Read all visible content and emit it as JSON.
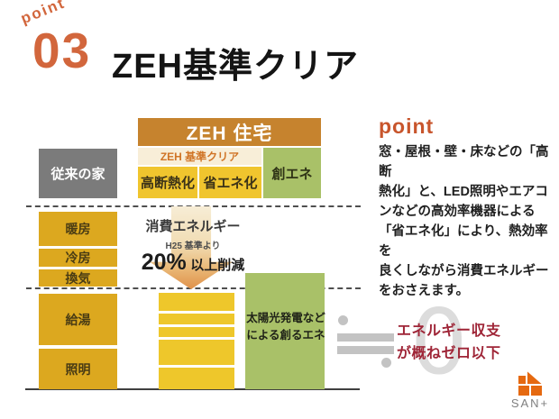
{
  "colors": {
    "accent_orange": "#d2663c",
    "header_band_orange": "#c6832e",
    "cream_band": "#f8eed8",
    "cream_band_text": "#d07426",
    "yellow_box": "#f0c52e",
    "gold_column": "#dca81f",
    "stack_yellow": "#eec72b",
    "green_box": "#a9c168",
    "gray_box": "#7b7b7b",
    "balance_red": "#9f2537",
    "logo_orange": "#e56910"
  },
  "header": {
    "point_label": "point",
    "point_number": "03",
    "title": "ZEH基準クリア"
  },
  "diagram": {
    "conventional_label": "従来の家",
    "zeh_header": "ZEH 住宅",
    "zeh_band": "ZEH 基準クリア",
    "box_insulation": "高断熱化",
    "box_saving": "省エネ化",
    "box_creation": "創エネ",
    "left_categories": [
      "暖房",
      "冷房",
      "換気",
      "給湯",
      "照明"
    ],
    "arrow_line1": "消費エネルギー",
    "arrow_line2": "H25 基準より",
    "arrow_percent": "20%",
    "arrow_suffix": "以上削減",
    "solar_line1": "太陽光発電など",
    "solar_line2": "による創るエネ",
    "zero_glyph": "0",
    "balance_line1": "エネルギー収支",
    "balance_line2": "が概ねゼロ以下"
  },
  "point_section": {
    "heading": "point",
    "body_lines": [
      "窓・屋根・壁・床などの「高断",
      "熱化」と、LED照明やエアコ",
      "ンなどの高効率機器による",
      "「省エネ化」により、熱効率を",
      "良くしながら消費エネルギー",
      "をおさえます。"
    ]
  },
  "footer": {
    "logo_text": "SAN+"
  }
}
